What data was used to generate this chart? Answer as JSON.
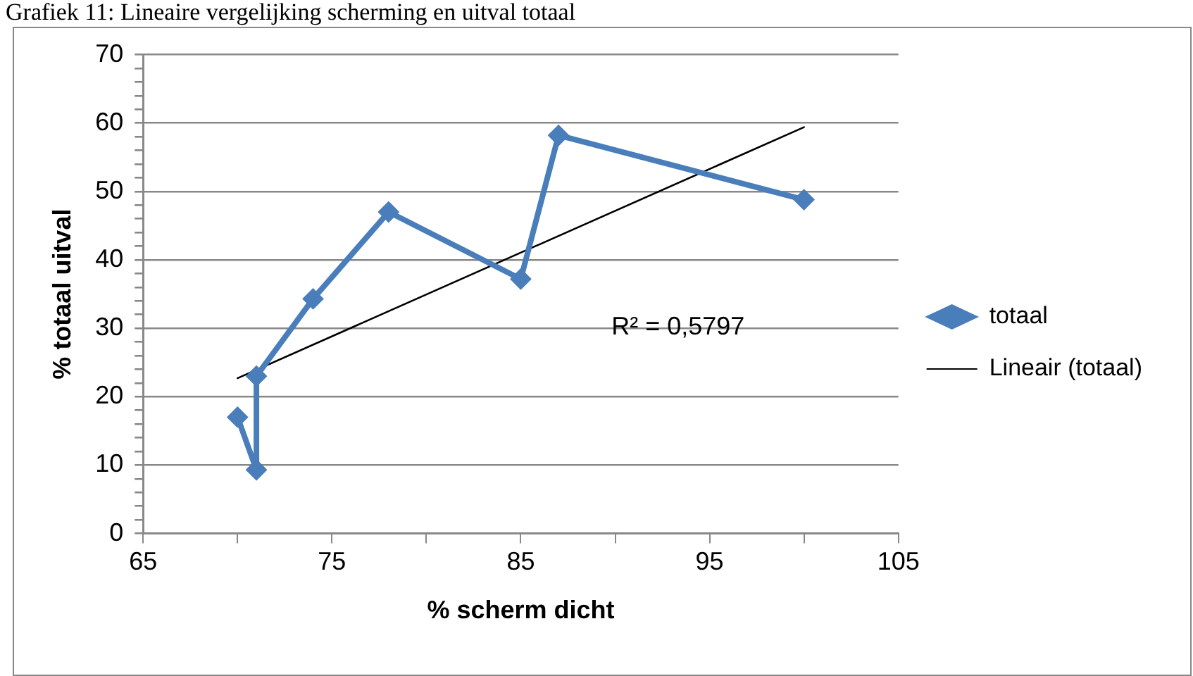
{
  "chart_data": {
    "type": "scatter",
    "title": "Grafiek 11: Lineaire vergelijking scherming en uitval totaal",
    "xlabel": "% scherm dicht",
    "ylabel": "% totaal uitval",
    "xlim": [
      65,
      105
    ],
    "ylim": [
      0,
      70
    ],
    "xticks": [
      65,
      {
        "value": 70,
        "label": null
      },
      75,
      {
        "value": 80,
        "label": null
      },
      85,
      {
        "value": 90,
        "label": null
      },
      95,
      {
        "value": 100,
        "label": null
      },
      105
    ],
    "yticks": [
      0,
      {
        "value": 2,
        "label": null
      },
      {
        "value": 4,
        "label": null
      },
      {
        "value": 6,
        "label": null
      },
      {
        "value": 8,
        "label": null
      },
      10,
      {
        "value": 12,
        "label": null
      },
      {
        "value": 14,
        "label": null
      },
      {
        "value": 16,
        "label": null
      },
      {
        "value": 18,
        "label": null
      },
      20,
      {
        "value": 22,
        "label": null
      },
      {
        "value": 24,
        "label": null
      },
      {
        "value": 26,
        "label": null
      },
      {
        "value": 28,
        "label": null
      },
      30,
      {
        "value": 32,
        "label": null
      },
      {
        "value": 34,
        "label": null
      },
      {
        "value": 36,
        "label": null
      },
      {
        "value": 38,
        "label": null
      },
      40,
      {
        "value": 42,
        "label": null
      },
      {
        "value": 44,
        "label": null
      },
      {
        "value": 46,
        "label": null
      },
      {
        "value": 48,
        "label": null
      },
      50,
      {
        "value": 52,
        "label": null
      },
      {
        "value": 54,
        "label": null
      },
      {
        "value": 56,
        "label": null
      },
      {
        "value": 58,
        "label": null
      },
      60,
      {
        "value": 62,
        "label": null
      },
      {
        "value": 64,
        "label": null
      },
      {
        "value": 66,
        "label": null
      },
      {
        "value": 68,
        "label": null
      },
      70
    ],
    "grid": "y",
    "legend": "right",
    "marker": "diamond",
    "line_style": "solid",
    "series": [
      {
        "name": "totaal",
        "type": "line",
        "color": "#4a7ebb",
        "x": [
          70,
          71,
          71,
          74,
          78,
          85,
          87,
          100
        ],
        "values": [
          17.0,
          9.3,
          23.0,
          34.3,
          47.0,
          37.2,
          58.2,
          48.8
        ]
      },
      {
        "name": "Lineair (totaal)",
        "type": "line",
        "color": "#000000",
        "marker": "none",
        "x": [
          70,
          100
        ],
        "values": [
          22.7,
          59.4
        ]
      }
    ],
    "annotations": [
      "R² = 0,5797"
    ]
  }
}
